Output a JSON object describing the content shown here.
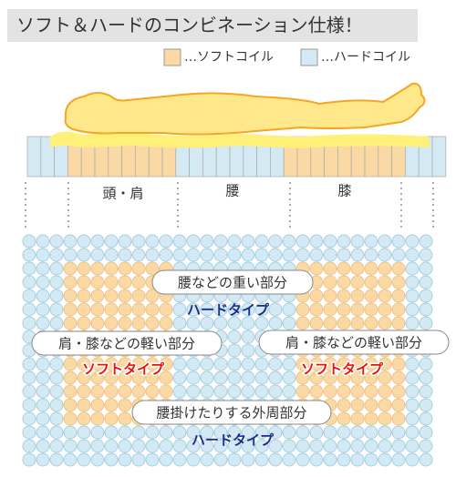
{
  "header": {
    "title": "ソフト＆ハードのコンビネーション仕様！"
  },
  "legend": [
    {
      "label": "…ソフトコイル"
    },
    {
      "label": "…ハードコイル"
    }
  ],
  "side_view": {
    "zones": [
      "頭・肩",
      "腰",
      "膝"
    ]
  },
  "top_view": {
    "regions": [
      {
        "label": "腰などの重い部分",
        "type": "ハードタイプ"
      },
      {
        "label": "肩・膝などの軽い部分",
        "type": "ソフトタイプ"
      },
      {
        "label": "肩・膝などの軽い部分",
        "type": "ソフトタイプ"
      },
      {
        "label": "腰掛けたりする外周部分",
        "type": "ハードタイプ"
      }
    ]
  }
}
